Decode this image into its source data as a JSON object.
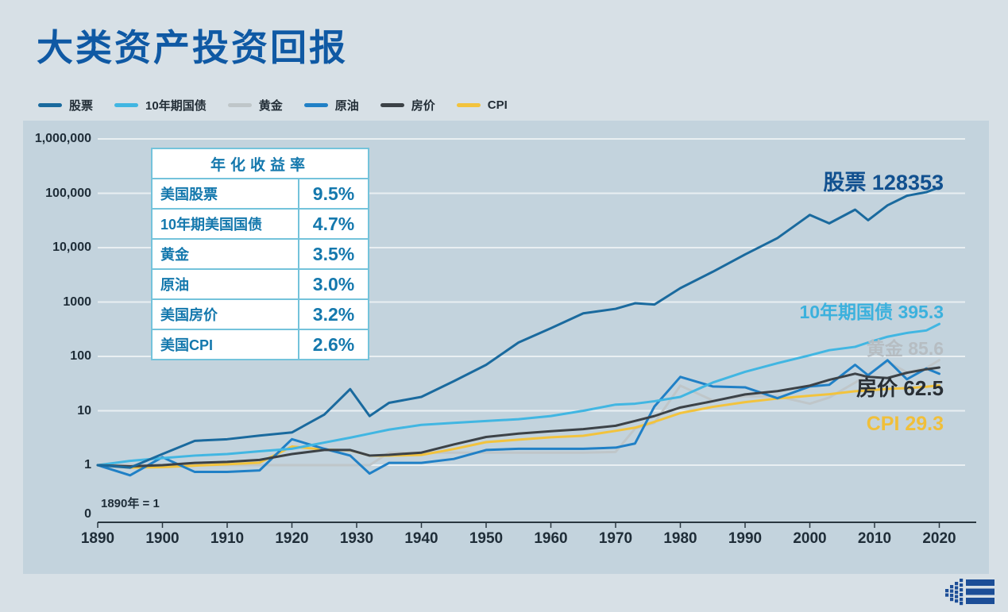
{
  "title": "大类资产投资回报",
  "colors": {
    "background": "#d7e0e6",
    "panel": "#c3d3dd",
    "grid": "#eef3f5",
    "title": "#0f59a4",
    "axis": "#2a3740",
    "table_border": "#74c3db",
    "table_text": "#1478ad",
    "logo": "#1c4e97"
  },
  "legend": [
    {
      "key": "stocks",
      "label": "股票",
      "color": "#1a6a9e"
    },
    {
      "key": "treasury",
      "label": "10年期国债",
      "color": "#41b6e2"
    },
    {
      "key": "gold",
      "label": "黄金",
      "color": "#bfc6c9"
    },
    {
      "key": "oil",
      "label": "原油",
      "color": "#2080c6"
    },
    {
      "key": "house",
      "label": "房价",
      "color": "#3c4247"
    },
    {
      "key": "cpi",
      "label": "CPI",
      "color": "#f2c33d"
    }
  ],
  "returns_table": {
    "header": "年化收益率",
    "rows": [
      {
        "label": "美国股票",
        "value": "9.5%"
      },
      {
        "label": "10年期美国国债",
        "value": "4.7%"
      },
      {
        "label": "黄金",
        "value": "3.5%"
      },
      {
        "label": "原油",
        "value": "3.0%"
      },
      {
        "label": "美国房价",
        "value": "3.2%"
      },
      {
        "label": "美国CPI",
        "value": "2.6%"
      }
    ]
  },
  "axis": {
    "y_labels": [
      {
        "text": "1,000,000",
        "value": 1000000
      },
      {
        "text": "100,000",
        "value": 100000
      },
      {
        "text": "10,000",
        "value": 10000
      },
      {
        "text": "1000",
        "value": 1000
      },
      {
        "text": "100",
        "value": 100
      },
      {
        "text": "10",
        "value": 10
      },
      {
        "text": "1",
        "value": 1
      }
    ],
    "zero_label": "0",
    "x_labels": [
      1890,
      1900,
      1910,
      1920,
      1930,
      1940,
      1950,
      1960,
      1970,
      1980,
      1990,
      2000,
      2010,
      2020
    ]
  },
  "chart_data": {
    "type": "line",
    "title": "大类资产投资回报",
    "y_scale": "log",
    "ylim": [
      0.4,
      1000000
    ],
    "x_range": [
      1890,
      2020
    ],
    "annotation": "1890年 = 1",
    "grid": true,
    "legend_position": "top-left",
    "x": [
      1890,
      1895,
      1900,
      1905,
      1910,
      1915,
      1920,
      1925,
      1929,
      1932,
      1935,
      1940,
      1945,
      1950,
      1955,
      1960,
      1965,
      1970,
      1973,
      1976,
      1980,
      1985,
      1990,
      1995,
      2000,
      2003,
      2007,
      2009,
      2012,
      2015,
      2018,
      2020
    ],
    "series": [
      {
        "key": "stocks",
        "name": "股票",
        "color": "#1a6a9e",
        "end_label": "股票 128353",
        "end_value": 128353,
        "values": [
          1,
          0.9,
          1.6,
          2.8,
          3.0,
          3.5,
          4.0,
          8.5,
          25,
          8,
          14,
          18,
          35,
          70,
          180,
          330,
          620,
          750,
          950,
          900,
          1800,
          3600,
          7500,
          15000,
          40000,
          28000,
          50000,
          32000,
          60000,
          90000,
          105000,
          128353
        ]
      },
      {
        "key": "treasury",
        "name": "10年期国债",
        "color": "#41b6e2",
        "end_label": "10年期国债 395.3",
        "end_value": 395.3,
        "values": [
          1,
          1.2,
          1.35,
          1.5,
          1.6,
          1.8,
          2.0,
          2.6,
          3.2,
          3.8,
          4.5,
          5.5,
          6.0,
          6.5,
          7.0,
          8.0,
          10,
          13,
          13.5,
          15,
          18,
          33,
          52,
          75,
          105,
          130,
          150,
          180,
          230,
          270,
          300,
          395.3
        ]
      },
      {
        "key": "gold",
        "name": "黄金",
        "color": "#bfc6c9",
        "end_label": "黄金 85.6",
        "end_value": 85.6,
        "values": [
          1,
          1,
          1,
          1,
          1,
          1,
          1,
          1,
          1,
          1,
          1.7,
          1.7,
          1.7,
          1.7,
          1.7,
          1.7,
          1.7,
          1.75,
          4.7,
          6,
          29,
          15.5,
          18.5,
          18.5,
          13.5,
          17.5,
          33,
          47,
          80,
          51,
          61,
          85.6
        ]
      },
      {
        "key": "oil",
        "name": "原油",
        "color": "#2080c6",
        "end_label": null,
        "end_value": 48,
        "values": [
          1,
          0.65,
          1.4,
          0.75,
          0.75,
          0.8,
          3.0,
          2.0,
          1.5,
          0.7,
          1.1,
          1.1,
          1.3,
          1.9,
          2.0,
          2.0,
          2.0,
          2.1,
          2.5,
          12,
          42,
          28,
          27,
          17,
          28,
          30,
          70,
          45,
          85,
          38,
          60,
          48
        ]
      },
      {
        "key": "house",
        "name": "房价",
        "color": "#3c4247",
        "end_label": "房价 62.5",
        "end_value": 62.5,
        "values": [
          1,
          0.95,
          1.0,
          1.1,
          1.15,
          1.25,
          1.6,
          1.9,
          1.9,
          1.5,
          1.55,
          1.7,
          2.4,
          3.3,
          3.8,
          4.2,
          4.6,
          5.3,
          6.5,
          8.0,
          11.5,
          15,
          20,
          23,
          29,
          37,
          48,
          42,
          40,
          50,
          58,
          62.5
        ]
      },
      {
        "key": "cpi",
        "name": "CPI",
        "color": "#f2c33d",
        "end_label": "CPI 29.3",
        "end_value": 29.3,
        "values": [
          1,
          0.9,
          0.92,
          0.98,
          1.04,
          1.11,
          2.2,
          1.93,
          1.88,
          1.5,
          1.5,
          1.54,
          1.98,
          2.65,
          2.94,
          3.26,
          3.47,
          4.27,
          4.89,
          6.27,
          9.07,
          11.8,
          14.4,
          16.8,
          18.9,
          20.2,
          22.9,
          23.6,
          25.3,
          26.1,
          27.6,
          29.3
        ]
      }
    ]
  }
}
